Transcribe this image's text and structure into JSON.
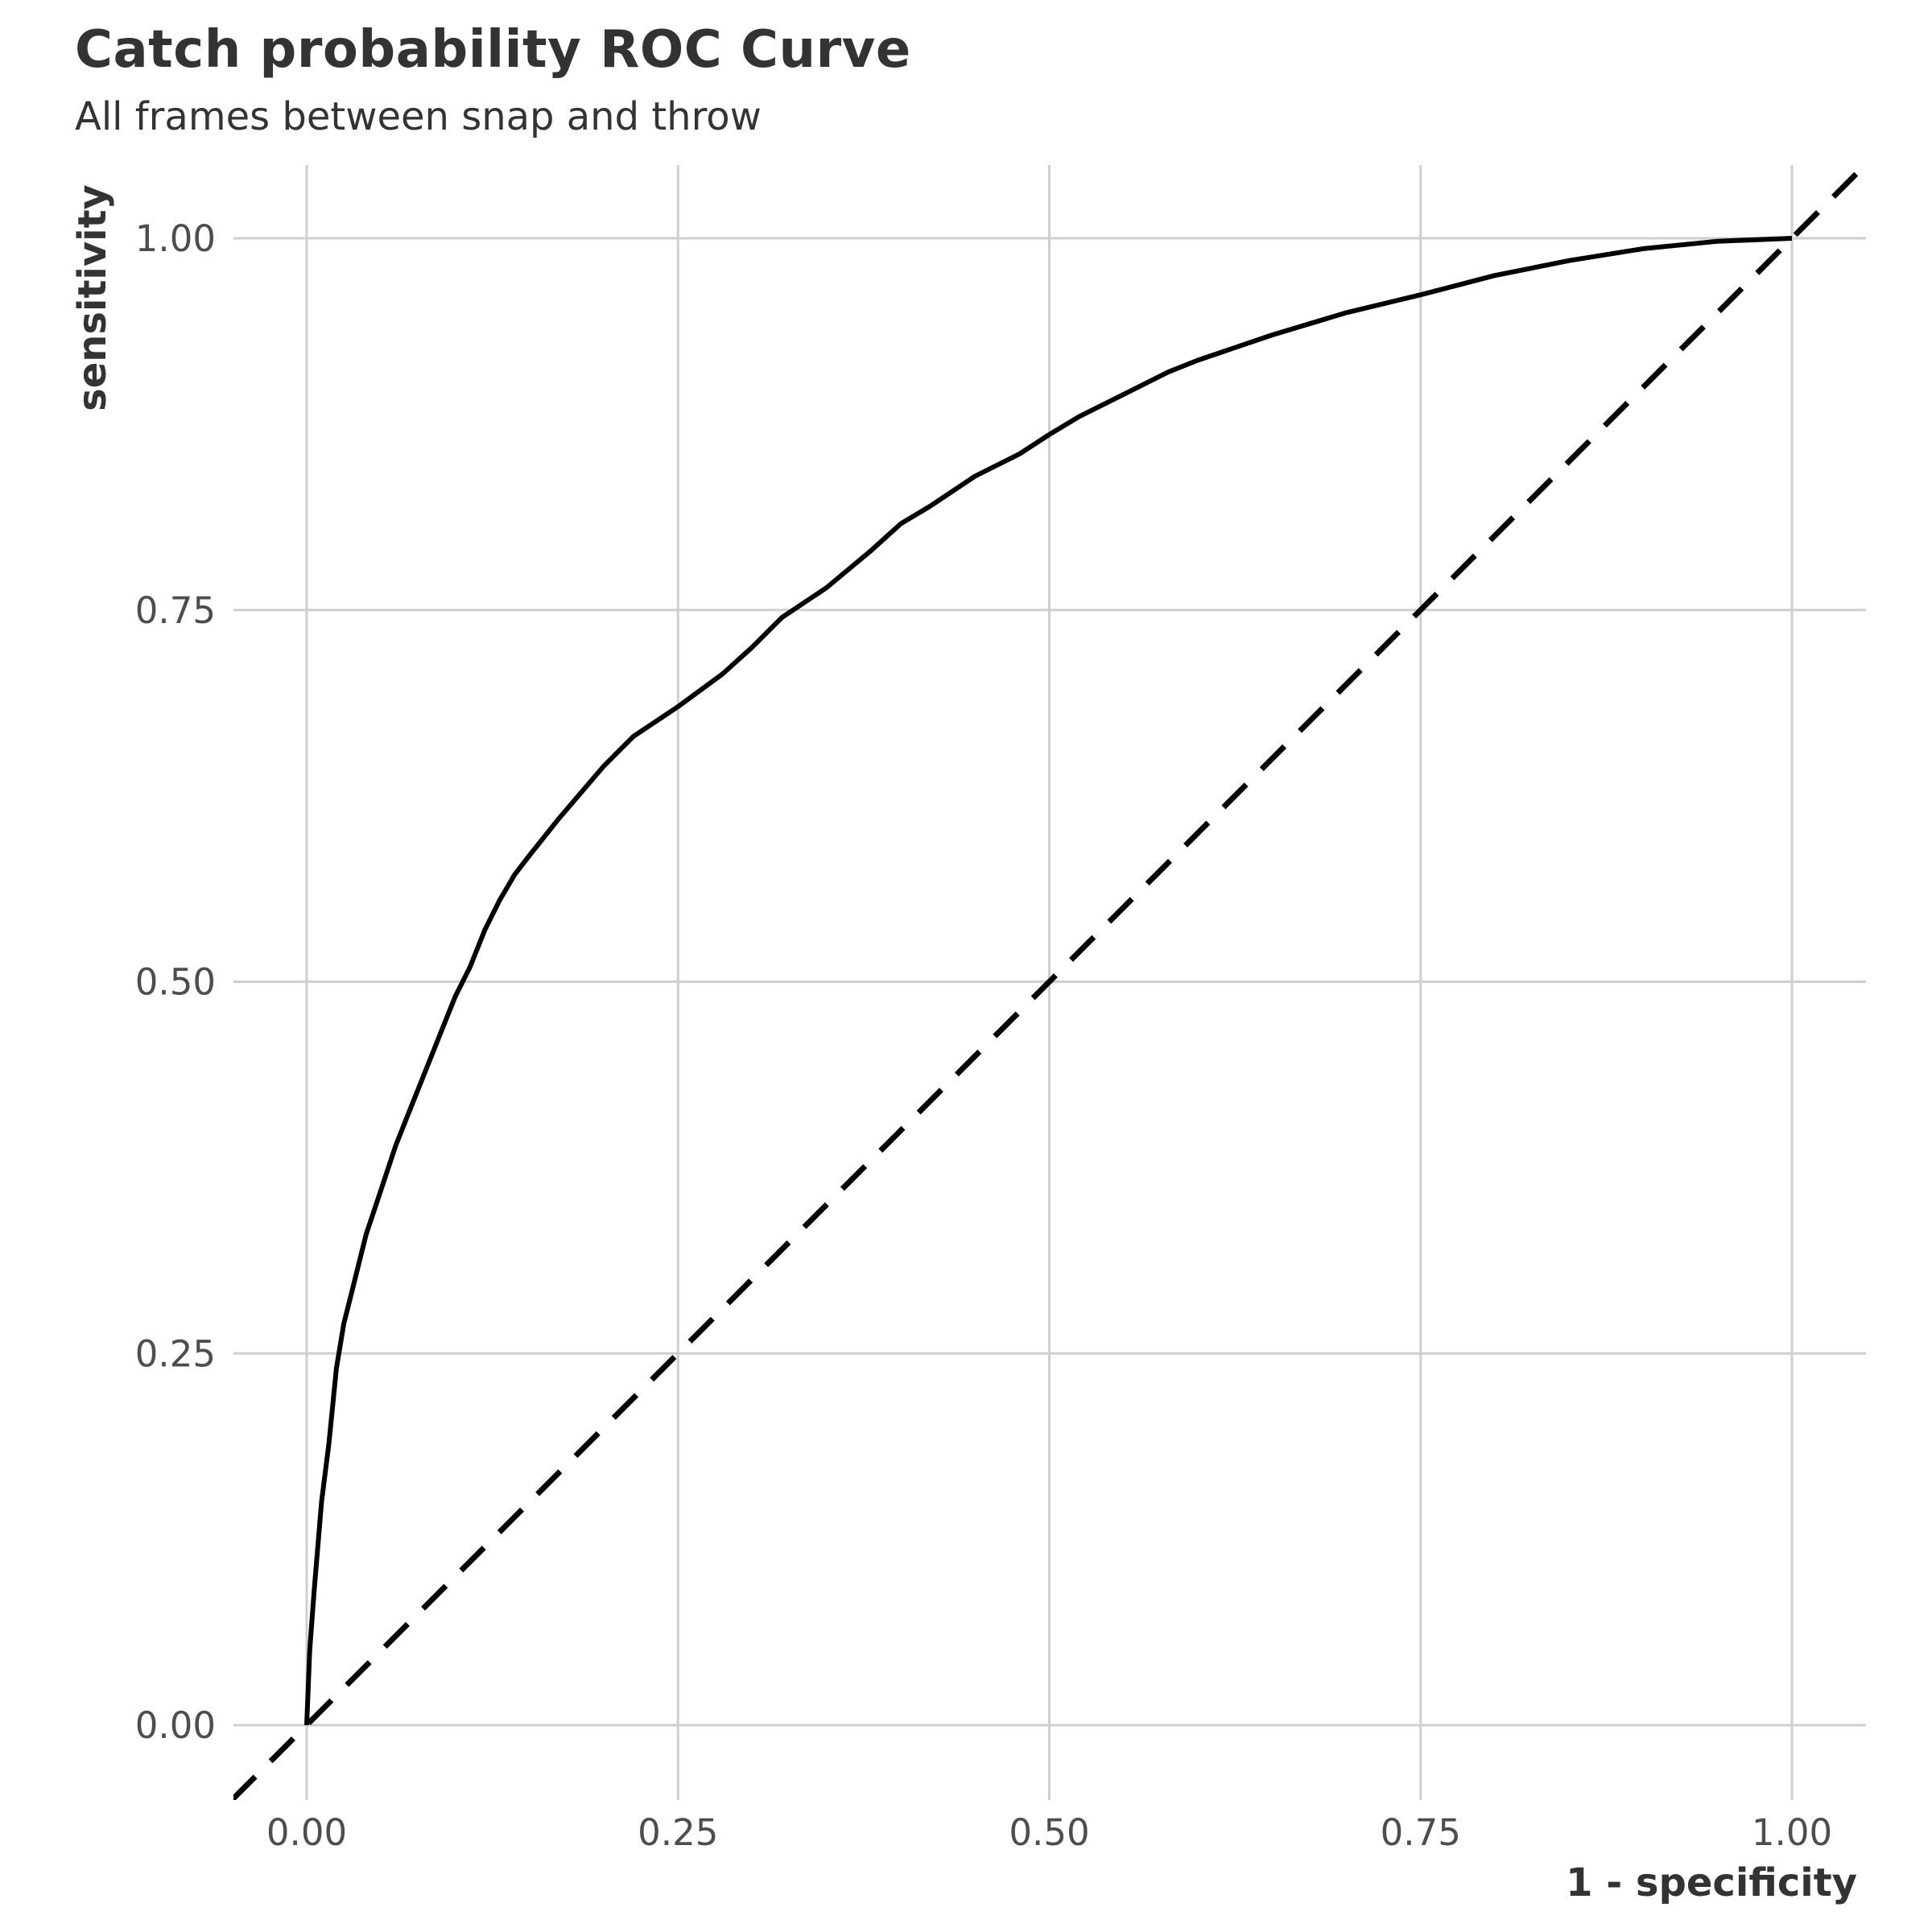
{
  "chart_data": {
    "type": "line",
    "title": "Catch probability ROC Curve",
    "subtitle": "All frames between snap and throw",
    "xlabel": "1 - specificity",
    "ylabel": "sensitivity",
    "xlim": [
      0,
      1
    ],
    "ylim": [
      0,
      1
    ],
    "x_ticks": [
      "0.00",
      "0.25",
      "0.50",
      "0.75",
      "1.00"
    ],
    "y_ticks": [
      "0.00",
      "0.25",
      "0.50",
      "0.75",
      "1.00"
    ],
    "grid": true,
    "legend": "none",
    "series": [
      {
        "style": "solid",
        "color": "#000000",
        "x": [
          0,
          0.002,
          0.005,
          0.01,
          0.015,
          0.02,
          0.025,
          0.03,
          0.035,
          0.04,
          0.05,
          0.06,
          0.07,
          0.08,
          0.09,
          0.1,
          0.11,
          0.12,
          0.13,
          0.14,
          0.15,
          0.17,
          0.2,
          0.22,
          0.25,
          0.28,
          0.3,
          0.32,
          0.35,
          0.38,
          0.4,
          0.42,
          0.45,
          0.48,
          0.5,
          0.52,
          0.55,
          0.58,
          0.6,
          0.65,
          0.7,
          0.75,
          0.8,
          0.85,
          0.9,
          0.95,
          1.0
        ],
        "y": [
          0,
          0.05,
          0.09,
          0.15,
          0.19,
          0.24,
          0.27,
          0.29,
          0.31,
          0.33,
          0.36,
          0.39,
          0.415,
          0.44,
          0.465,
          0.49,
          0.51,
          0.535,
          0.555,
          0.572,
          0.585,
          0.61,
          0.645,
          0.665,
          0.685,
          0.707,
          0.725,
          0.745,
          0.765,
          0.79,
          0.808,
          0.82,
          0.84,
          0.855,
          0.868,
          0.88,
          0.895,
          0.91,
          0.918,
          0.935,
          0.95,
          0.962,
          0.975,
          0.985,
          0.993,
          0.998,
          1.0
        ]
      },
      {
        "style": "dashed",
        "color": "#000000",
        "x": [
          -0.05,
          1.05
        ],
        "y": [
          -0.05,
          1.05
        ]
      }
    ]
  }
}
